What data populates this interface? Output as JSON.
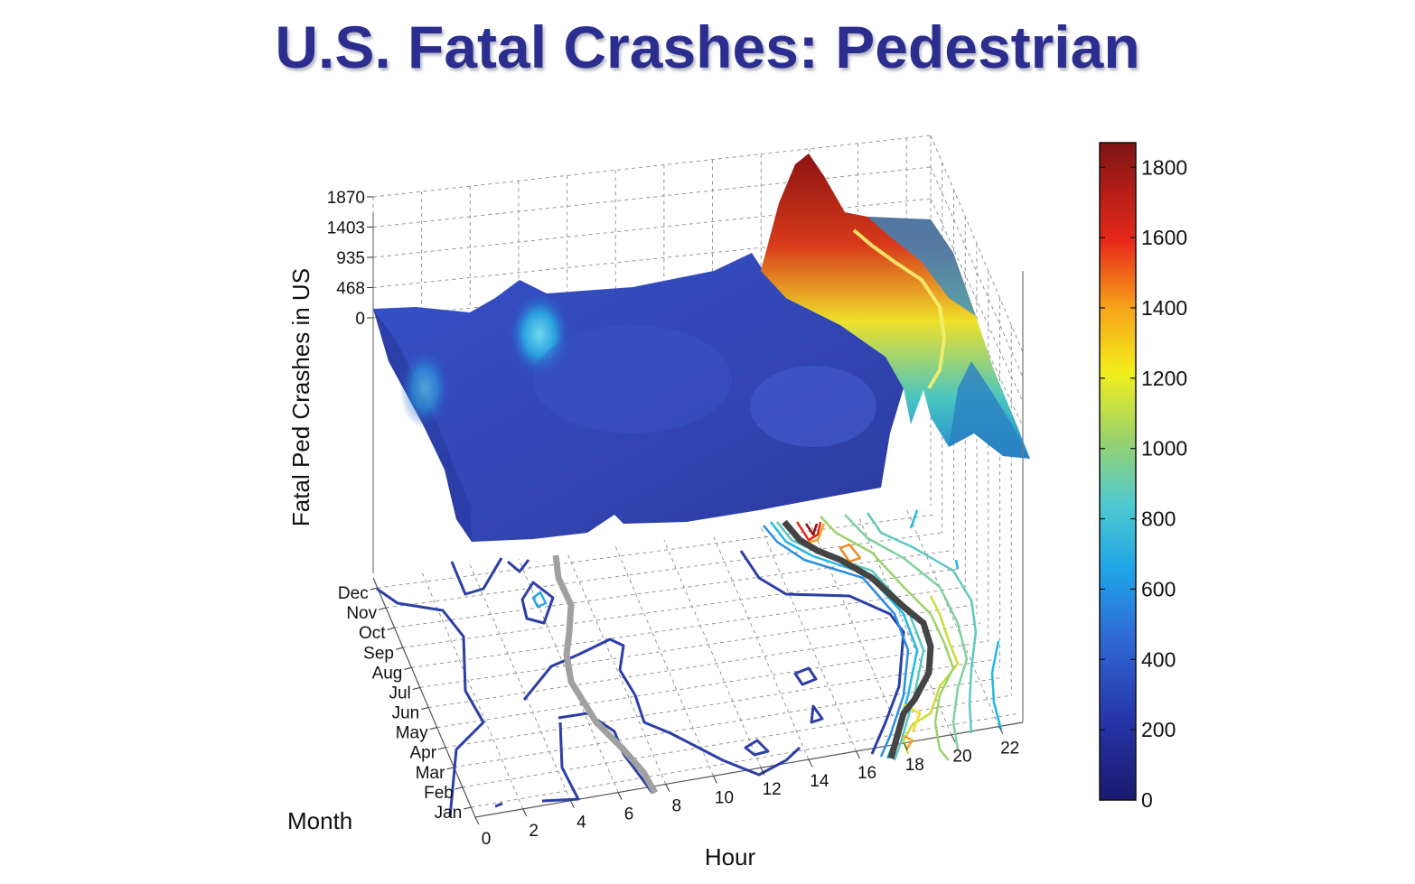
{
  "title": "U.S. Fatal Crashes: Pedestrian",
  "colors": {
    "title": "#2b2e8f",
    "grid": "#8a8a8a",
    "ridge_line": "#444444",
    "morning_line": "#a0a0a0"
  },
  "chart_data": {
    "type": "surface",
    "subtype": "3d surface with contour projection and colorbar",
    "xlabel": "Hour",
    "ylabel": "Month",
    "zlabel": "Fatal Ped Crashes in US",
    "x_ticks": [
      "0",
      "2",
      "4",
      "6",
      "8",
      "10",
      "12",
      "14",
      "16",
      "18",
      "20",
      "22"
    ],
    "x_range": [
      0,
      23
    ],
    "y_ticks": [
      "Jan",
      "Feb",
      "Mar",
      "Apr",
      "May",
      "Jun",
      "Jul",
      "Aug",
      "Sep",
      "Oct",
      "Nov",
      "Dec"
    ],
    "z_ticks": [
      "0",
      "468",
      "935",
      "1403",
      "1870"
    ],
    "z_range": [
      0,
      1870
    ],
    "colorbar": {
      "ticks": [
        "0",
        "200",
        "400",
        "600",
        "800",
        "1000",
        "1200",
        "1400",
        "1600",
        "1800"
      ],
      "range": [
        0,
        1870
      ],
      "colormap": "jet"
    },
    "grid": true,
    "peak": {
      "hour": 18,
      "month": "Dec",
      "value": 1850
    },
    "surface_description_values": {
      "daytime_level": [
        200,
        450
      ],
      "evening_ridge_hours": [
        17,
        20
      ],
      "evening_ridge_values": [
        900,
        1850
      ]
    }
  }
}
